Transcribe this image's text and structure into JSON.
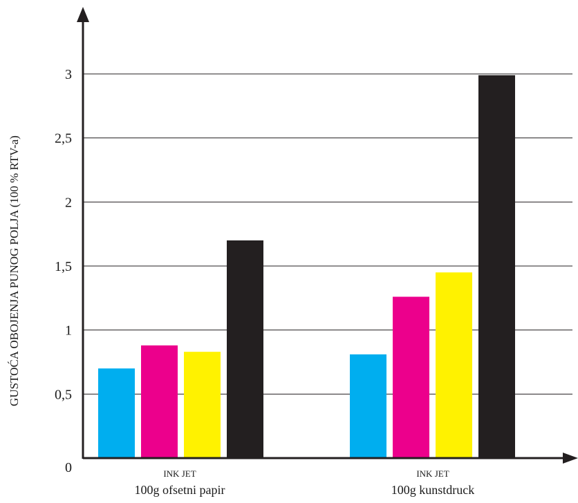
{
  "chart_data": {
    "type": "bar",
    "title": "",
    "ylabel": "GUSTOĆA OBOJENJA PUNOG POLJA (100 % RTV-a)",
    "xlabel": "",
    "ylim": [
      0,
      3
    ],
    "yticks": [
      "0",
      "0,5",
      "1",
      "1,5",
      "2",
      "2,5",
      "3"
    ],
    "ytick_values": [
      0,
      0.5,
      1,
      1.5,
      2,
      2.5,
      3
    ],
    "grid": "horizontal",
    "categories": [
      {
        "line1": "INK JET",
        "line2": "100g ofsetni papir"
      },
      {
        "line1": "INK JET",
        "line2": "100g  kunstdruck"
      }
    ],
    "series": [
      {
        "color": "#00aeef",
        "values": [
          0.7,
          0.81
        ]
      },
      {
        "color": "#ec008c",
        "values": [
          0.88,
          1.26
        ]
      },
      {
        "color": "#fff200",
        "values": [
          0.83,
          1.45
        ]
      },
      {
        "color": "#231f20",
        "values": [
          1.7,
          2.99
        ]
      }
    ]
  }
}
